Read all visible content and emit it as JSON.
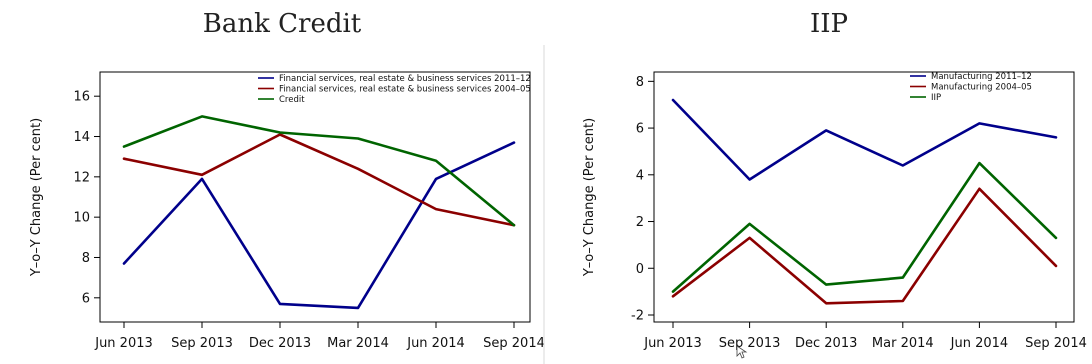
{
  "chart_data": [
    {
      "type": "line",
      "title": "Bank Credit",
      "xlabel": "",
      "ylabel": "Y–o–Y Change (Per cent)",
      "categories": [
        "Jun 2013",
        "Sep 2013",
        "Dec 2013",
        "Mar 2014",
        "Jun 2014",
        "Sep 2014"
      ],
      "ylim": [
        4.8,
        17.2
      ],
      "yticks": [
        6,
        8,
        10,
        12,
        14,
        16
      ],
      "legend_position": "top-right",
      "series": [
        {
          "name": "Financial services, real estate & business services 2011–12",
          "color": "#00008b",
          "values": [
            7.7,
            11.9,
            5.7,
            5.5,
            11.9,
            13.7
          ]
        },
        {
          "name": "Financial services, real estate & business services  2004–05",
          "color": "#8b0000",
          "values": [
            12.9,
            12.1,
            14.1,
            12.4,
            10.4,
            9.6
          ]
        },
        {
          "name": "Credit",
          "color": "#006400",
          "values": [
            13.5,
            15.0,
            14.2,
            13.9,
            12.8,
            9.6
          ]
        }
      ]
    },
    {
      "type": "line",
      "title": "IIP",
      "xlabel": "",
      "ylabel": "Y–o–Y Change (Per cent)",
      "categories": [
        "Jun 2013",
        "Sep 2013",
        "Dec 2013",
        "Mar 2014",
        "Jun 2014",
        "Sep 2014"
      ],
      "ylim": [
        -2.3,
        8.4
      ],
      "yticks": [
        -2,
        0,
        2,
        4,
        6,
        8
      ],
      "legend_position": "top-right",
      "series": [
        {
          "name": "Manufacturing 2011–12",
          "color": "#00008b",
          "values": [
            7.2,
            3.8,
            5.9,
            4.4,
            6.2,
            5.6
          ]
        },
        {
          "name": "Manufacturing  2004–05",
          "color": "#8b0000",
          "values": [
            -1.2,
            1.3,
            -1.5,
            -1.4,
            3.4,
            0.1
          ]
        },
        {
          "name": "IIP",
          "color": "#006400",
          "values": [
            -1.0,
            1.9,
            -0.7,
            -0.4,
            4.5,
            1.3
          ]
        }
      ]
    }
  ]
}
